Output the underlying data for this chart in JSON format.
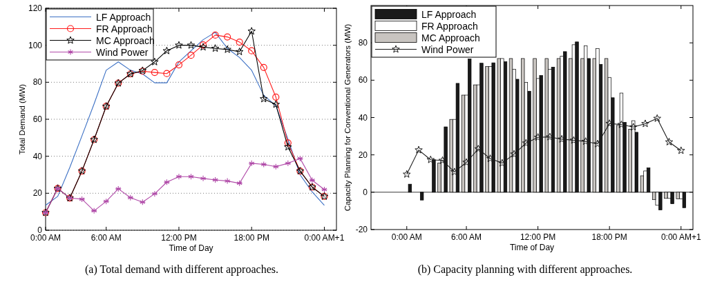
{
  "chart_data": [
    {
      "type": "line",
      "title": "(a)  Total demand with different approaches.",
      "xlabel": "Time of Day",
      "ylabel": "Total Demand (MW)",
      "x": [
        1,
        2,
        3,
        4,
        5,
        6,
        7,
        8,
        9,
        10,
        11,
        12,
        13,
        14,
        15,
        16,
        17,
        18,
        19,
        20,
        21,
        22,
        23,
        24
      ],
      "xlim": [
        1,
        25
      ],
      "xticks": [
        {
          "value": 1,
          "label": "0:00 AM"
        },
        {
          "value": 6,
          "label": "6:00 AM"
        },
        {
          "value": 12,
          "label": "12:00 PM"
        },
        {
          "value": 18,
          "label": "18:00 PM"
        },
        {
          "value": 24,
          "label": "0:00 AM+1"
        }
      ],
      "ylim": [
        0,
        120
      ],
      "yticks": [
        0,
        20,
        40,
        60,
        80,
        100,
        120
      ],
      "grid": "y",
      "legend": "top left",
      "series": [
        {
          "name": "LF Approach",
          "color": "#3a6fc4",
          "marker": "none",
          "values": [
            13.5,
            18.3,
            34,
            51,
            68.3,
            86.5,
            91,
            86.5,
            84.5,
            79.7,
            79.7,
            91,
            97,
            103,
            107,
            98.3,
            93.4,
            86.5,
            73,
            67.3,
            49.2,
            30,
            20.7,
            13.5
          ]
        },
        {
          "name": "FR Approach",
          "color": "#ff1a1a",
          "marker": "circle",
          "values": [
            9.5,
            22.6,
            17.4,
            32,
            49,
            67,
            79.5,
            84.5,
            86,
            85.3,
            84.7,
            89.4,
            94.6,
            100.2,
            105.5,
            104.5,
            101.7,
            97,
            88,
            72,
            47.2,
            32,
            23.3,
            18.3
          ]
        },
        {
          "name": "MC Approach",
          "color": "#000000",
          "marker": "star",
          "values": [
            9.5,
            22.6,
            17.4,
            32,
            49,
            67,
            79.5,
            84.5,
            86.3,
            91,
            97,
            100,
            100,
            99,
            98.3,
            97.7,
            96.5,
            107.6,
            71,
            68,
            45,
            32,
            23.3,
            18.3
          ]
        },
        {
          "name": "Wind Power",
          "color": "#b04aa8",
          "marker": "cross",
          "values": [
            9.5,
            22.6,
            17.4,
            16.8,
            10.5,
            15.6,
            22.4,
            17.6,
            15.2,
            19.7,
            26,
            29,
            29,
            28,
            27.2,
            26.6,
            25.4,
            36.2,
            35.6,
            34.4,
            36.2,
            38.8,
            27,
            22
          ]
        }
      ]
    },
    {
      "type": "bar",
      "title": "(b)  Capacity planning with different approaches.",
      "xlabel": "Time of Day",
      "ylabel": "Capacity Planning for Conventional Generators (MW)",
      "x": [
        1,
        2,
        3,
        4,
        5,
        6,
        7,
        8,
        9,
        10,
        11,
        12,
        13,
        14,
        15,
        16,
        17,
        18,
        19,
        20,
        21,
        22,
        23,
        24
      ],
      "xlim": [
        -2,
        25
      ],
      "xticks": [
        {
          "value": 1,
          "label": "0:00 AM"
        },
        {
          "value": 6,
          "label": "6:00 AM"
        },
        {
          "value": 12,
          "label": "12:00 PM"
        },
        {
          "value": 18,
          "label": "18:00 PM"
        },
        {
          "value": 24,
          "label": "0:00 AM+1"
        }
      ],
      "ylim": [
        -20,
        100
      ],
      "yticks": [
        -20,
        0,
        20,
        40,
        60,
        80
      ],
      "legend": "top left",
      "series": [
        {
          "name": "LF Approach",
          "color": "#1a1a1a",
          "values": [
            4.3,
            -4.2,
            17.4,
            35,
            58.3,
            71.4,
            69.1,
            69.3,
            69.9,
            60.5,
            54.1,
            62.5,
            67,
            75.3,
            80.5,
            71.6,
            68.5,
            50.6,
            37.4,
            32.1,
            13,
            -9.5,
            -6.2,
            -8.3
          ]
        },
        {
          "name": "FR Approach",
          "color": "#ffffff",
          "values": [
            0,
            0,
            0,
            17,
            39,
            52,
            57.5,
            67.3,
            71.6,
            65.8,
            58.8,
            60.9,
            65.8,
            72.8,
            79,
            78.4,
            76.9,
            61.5,
            53.1,
            38.3,
            11.4,
            -7,
            -3.3,
            -3.6
          ]
        },
        {
          "name": "MC Approach",
          "color": "#c8c4c0",
          "values": [
            0,
            0,
            0,
            15.6,
            39,
            52,
            57.5,
            67.3,
            71.6,
            71.6,
            71.6,
            71.6,
            71.6,
            71.6,
            71.6,
            71.6,
            71.6,
            71.6,
            35.8,
            33.7,
            8.8,
            -4,
            -3.3,
            -3.6
          ]
        },
        {
          "name": "Wind Power",
          "type": "line",
          "color": "#1a1a1a",
          "marker": "star",
          "values": [
            9.6,
            22.6,
            17.4,
            17,
            10.9,
            16,
            23.2,
            18,
            15.6,
            20.4,
            26.3,
            29.4,
            29.6,
            28.4,
            27.8,
            27.2,
            25.9,
            36.8,
            36.2,
            34.9,
            36.7,
            39.5,
            26.9,
            22.3
          ]
        }
      ]
    }
  ]
}
